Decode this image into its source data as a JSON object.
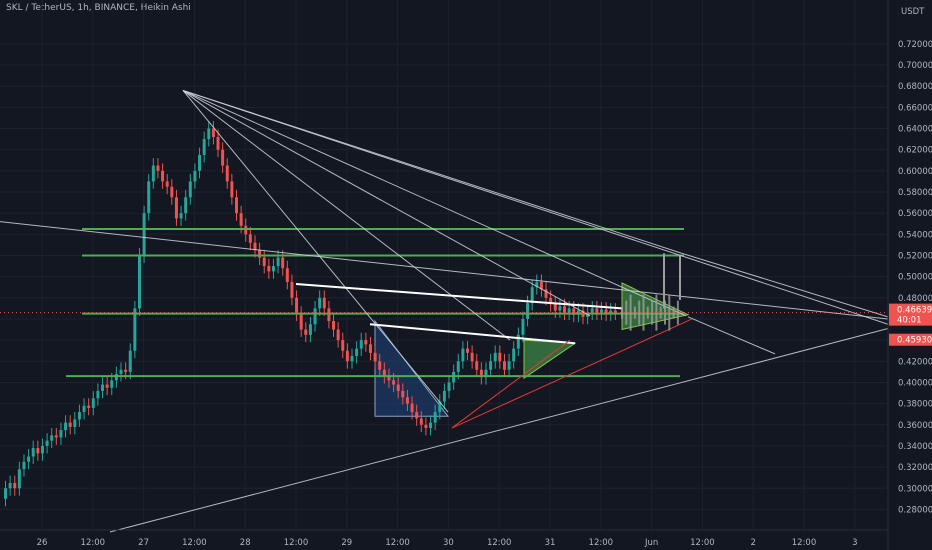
{
  "header": {
    "symbol_line": "SKL / TetherUS, 1h, BINANCE, Heikin Ashi"
  },
  "colors": {
    "background": "#131722",
    "up": "#26a69a",
    "down": "#ef5350",
    "grid": "#1e222d",
    "axis_text": "#b2b5be",
    "trendline": "#d1d4dc",
    "support_line": "#4caf50",
    "triangle_fill": "#4caf50",
    "blue_triangle_fill": "#1c3a66",
    "red_line": "#e53935",
    "price_tag": "#ef5350"
  },
  "chart_data": {
    "type": "candlestick",
    "title": "SKL / TetherUS, 1h, BINANCE, Heikin Ashi",
    "y_unit": "USDT",
    "ylim": [
      0.27,
      0.735
    ],
    "y_ticks": [
      "0.72000",
      "0.70000",
      "0.68000",
      "0.66000",
      "0.64000",
      "0.62000",
      "0.60000",
      "0.58000",
      "0.56000",
      "0.54000",
      "0.52000",
      "0.50000",
      "0.48000",
      "0.46000",
      "0.44000",
      "0.42000",
      "0.40000",
      "0.38000",
      "0.36000",
      "0.34000",
      "0.32000",
      "0.30000",
      "0.28000"
    ],
    "x_ticks": [
      "26",
      "12:00",
      "27",
      "12:00",
      "28",
      "12:00",
      "29",
      "12:00",
      "30",
      "12:00",
      "31",
      "12:00",
      "Jun",
      "12:00",
      "2",
      "12:00",
      "3"
    ],
    "last_price": "0.46639",
    "countdown": "40:01",
    "secondary_price": "0.45930",
    "support_levels": [
      0.545,
      0.52,
      0.465,
      0.406
    ],
    "candles": [
      [
        0.29,
        0.3
      ],
      [
        0.3,
        0.305
      ],
      [
        0.305,
        0.3
      ],
      [
        0.3,
        0.318
      ],
      [
        0.318,
        0.325
      ],
      [
        0.325,
        0.33
      ],
      [
        0.33,
        0.338
      ],
      [
        0.338,
        0.333
      ],
      [
        0.333,
        0.34
      ],
      [
        0.34,
        0.345
      ],
      [
        0.345,
        0.35
      ],
      [
        0.35,
        0.348
      ],
      [
        0.348,
        0.355
      ],
      [
        0.355,
        0.362
      ],
      [
        0.362,
        0.358
      ],
      [
        0.358,
        0.365
      ],
      [
        0.365,
        0.372
      ],
      [
        0.372,
        0.378
      ],
      [
        0.378,
        0.376
      ],
      [
        0.376,
        0.385
      ],
      [
        0.385,
        0.392
      ],
      [
        0.392,
        0.398
      ],
      [
        0.398,
        0.395
      ],
      [
        0.395,
        0.402
      ],
      [
        0.402,
        0.408
      ],
      [
        0.408,
        0.412
      ],
      [
        0.412,
        0.41
      ],
      [
        0.41,
        0.43
      ],
      [
        0.43,
        0.47
      ],
      [
        0.47,
        0.52
      ],
      [
        0.52,
        0.56
      ],
      [
        0.56,
        0.59
      ],
      [
        0.59,
        0.605
      ],
      [
        0.605,
        0.6
      ],
      [
        0.6,
        0.59
      ],
      [
        0.59,
        0.585
      ],
      [
        0.585,
        0.575
      ],
      [
        0.575,
        0.555
      ],
      [
        0.555,
        0.56
      ],
      [
        0.56,
        0.575
      ],
      [
        0.575,
        0.59
      ],
      [
        0.59,
        0.6
      ],
      [
        0.6,
        0.615
      ],
      [
        0.615,
        0.63
      ],
      [
        0.63,
        0.64
      ],
      [
        0.64,
        0.632
      ],
      [
        0.632,
        0.62
      ],
      [
        0.62,
        0.605
      ],
      [
        0.605,
        0.59
      ],
      [
        0.59,
        0.575
      ],
      [
        0.575,
        0.56
      ],
      [
        0.56,
        0.548
      ],
      [
        0.548,
        0.54
      ],
      [
        0.54,
        0.532
      ],
      [
        0.532,
        0.525
      ],
      [
        0.525,
        0.518
      ],
      [
        0.518,
        0.51
      ],
      [
        0.51,
        0.505
      ],
      [
        0.505,
        0.51
      ],
      [
        0.51,
        0.518
      ],
      [
        0.518,
        0.508
      ],
      [
        0.508,
        0.495
      ],
      [
        0.495,
        0.48
      ],
      [
        0.48,
        0.465
      ],
      [
        0.465,
        0.45
      ],
      [
        0.45,
        0.445
      ],
      [
        0.445,
        0.455
      ],
      [
        0.455,
        0.47
      ],
      [
        0.47,
        0.48
      ],
      [
        0.48,
        0.47
      ],
      [
        0.47,
        0.458
      ],
      [
        0.458,
        0.45
      ],
      [
        0.45,
        0.44
      ],
      [
        0.44,
        0.43
      ],
      [
        0.43,
        0.42
      ],
      [
        0.42,
        0.425
      ],
      [
        0.425,
        0.432
      ],
      [
        0.432,
        0.44
      ],
      [
        0.44,
        0.436
      ],
      [
        0.436,
        0.428
      ],
      [
        0.428,
        0.42
      ],
      [
        0.42,
        0.412
      ],
      [
        0.412,
        0.406
      ],
      [
        0.406,
        0.402
      ],
      [
        0.402,
        0.398
      ],
      [
        0.398,
        0.392
      ],
      [
        0.392,
        0.386
      ],
      [
        0.386,
        0.38
      ],
      [
        0.38,
        0.372
      ],
      [
        0.372,
        0.366
      ],
      [
        0.366,
        0.36
      ],
      [
        0.36,
        0.357
      ],
      [
        0.357,
        0.362
      ],
      [
        0.362,
        0.372
      ],
      [
        0.372,
        0.382
      ],
      [
        0.382,
        0.392
      ],
      [
        0.392,
        0.4
      ],
      [
        0.4,
        0.41
      ],
      [
        0.41,
        0.42
      ],
      [
        0.42,
        0.432
      ],
      [
        0.432,
        0.428
      ],
      [
        0.428,
        0.42
      ],
      [
        0.42,
        0.412
      ],
      [
        0.412,
        0.405
      ],
      [
        0.405,
        0.412
      ],
      [
        0.412,
        0.42
      ],
      [
        0.42,
        0.428
      ],
      [
        0.428,
        0.42
      ],
      [
        0.42,
        0.412
      ],
      [
        0.412,
        0.42
      ],
      [
        0.42,
        0.432
      ],
      [
        0.432,
        0.445
      ],
      [
        0.445,
        0.46
      ],
      [
        0.46,
        0.475
      ],
      [
        0.475,
        0.49
      ],
      [
        0.49,
        0.495
      ],
      [
        0.495,
        0.488
      ],
      [
        0.488,
        0.48
      ],
      [
        0.48,
        0.474
      ],
      [
        0.474,
        0.468
      ],
      [
        0.468,
        0.472
      ],
      [
        0.472,
        0.466
      ],
      [
        0.466,
        0.47
      ],
      [
        0.47,
        0.464
      ],
      [
        0.464,
        0.468
      ],
      [
        0.468,
        0.462
      ],
      [
        0.462,
        0.466
      ],
      [
        0.466,
        0.47
      ],
      [
        0.47,
        0.466
      ],
      [
        0.466,
        0.469
      ],
      [
        0.469,
        0.465
      ],
      [
        0.465,
        0.468
      ],
      [
        0.468,
        0.466
      ]
    ]
  }
}
